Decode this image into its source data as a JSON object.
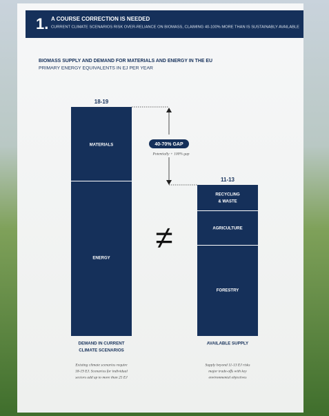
{
  "header": {
    "number": "1.",
    "title": "A COURSE CORRECTION IS NEEDED",
    "subtitle": "CURRENT CLIMATE SCENARIOS RISK OVER-RELIANCE ON BIOMASS, CLAIMING 40-100% MORE THAN IS SUSTAINABLY AVAILABLE"
  },
  "figure": {
    "title": "BIOMASS SUPPLY AND DEMAND FOR MATERIALS AND ENERGY IN THE EU",
    "subtitle": "PRIMARY ENERGY EQUIVALENTS IN EJ PER YEAR",
    "gap": {
      "label": "40-70% GAP",
      "note": "Potentially + 100% gap"
    },
    "symbol": "≠",
    "demand": {
      "total": "18-19",
      "segments": [
        "MATERIALS",
        "ENERGY"
      ],
      "label": [
        "DEMAND IN CURRENT",
        "CLIMATE SCENARIOS"
      ],
      "note": [
        "Existing climate scenarios require",
        "18-19 EJ. Scenarios for individual",
        "sectors add up to more than 25 EJ"
      ]
    },
    "supply": {
      "total": "11-13",
      "segments": [
        [
          "RECYCLING",
          "& WASTE"
        ],
        [
          "AGRICULTURE"
        ],
        [
          "FORESTRY"
        ]
      ],
      "label": [
        "AVAILABLE SUPPLY"
      ],
      "note": [
        "Supply beyond 11-13 EJ risks",
        "major trade-offs with key",
        "environmental objectives"
      ]
    }
  }
}
